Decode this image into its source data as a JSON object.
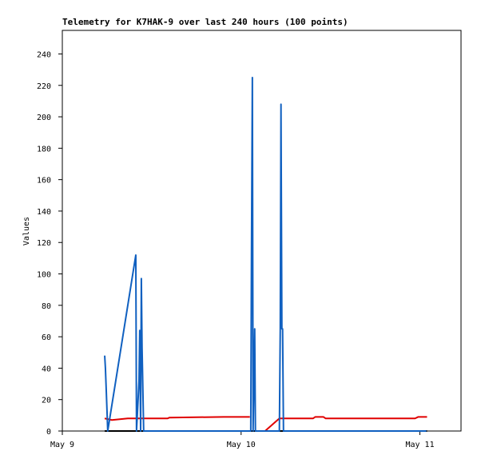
{
  "chart_data": {
    "type": "line",
    "title": "Telemetry for K7HAK-9 over last 240 hours (100 points)",
    "y_label": "Values",
    "xlim": [
      9,
      11.23
    ],
    "xticks": [
      {
        "value": 9,
        "label": "May 9"
      },
      {
        "value": 10,
        "label": "May 10"
      },
      {
        "value": 11,
        "label": "May 11"
      }
    ],
    "ylim": [
      0,
      255
    ],
    "yticks": [
      0,
      20,
      40,
      60,
      80,
      100,
      120,
      140,
      160,
      180,
      200,
      220,
      240
    ],
    "grid": false,
    "series": [
      {
        "color": "#000000",
        "x": [
          9.237,
          11.04
        ],
        "values": [
          0,
          0
        ]
      },
      {
        "color": "#e00000",
        "x": [
          9.237,
          9.277,
          9.366,
          9.589,
          9.598,
          9.902,
          10.049,
          10.1,
          10.134,
          10.214,
          10.402,
          10.415,
          10.46,
          10.473,
          10.973,
          10.991,
          11.04
        ],
        "values": [
          8,
          7,
          8,
          8,
          8.5,
          9,
          9,
          null,
          0,
          8,
          8,
          9,
          9,
          8,
          8,
          9,
          9
        ]
      },
      {
        "color": "#1060c0",
        "x": [
          9.237,
          9.241,
          9.246,
          9.254,
          9.411,
          9.415,
          9.429,
          9.433,
          9.438,
          9.442,
          9.446,
          9.455,
          10.054,
          10.058,
          10.063,
          10.067,
          10.076,
          10.08,
          10.214,
          10.219,
          10.223,
          10.228,
          10.232,
          10.237,
          11.036
        ],
        "values": [
          48,
          40,
          25,
          0,
          112,
          0,
          32,
          64,
          0,
          97,
          53,
          0,
          0,
          112,
          225,
          0,
          65,
          0,
          0,
          65,
          208,
          65,
          65,
          0,
          0
        ]
      }
    ]
  }
}
